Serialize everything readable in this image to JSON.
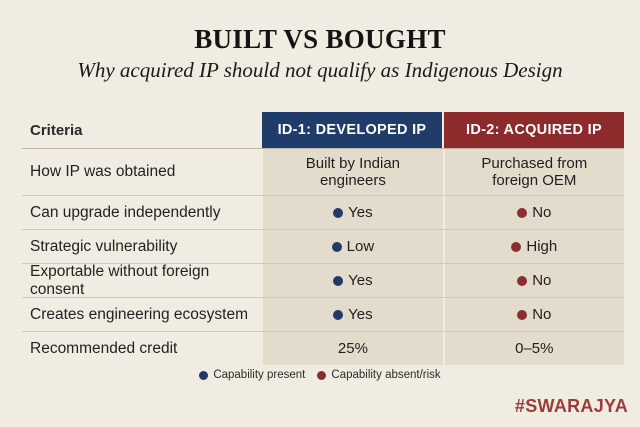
{
  "title": "BUILT VS BOUGHT",
  "subtitle": "Why acquired IP should not qualify as Indigenous Design",
  "table": {
    "criteria_header": "Criteria",
    "col1_header": "ID-1: DEVELOPED IP",
    "col2_header": "ID-2: ACQUIRED IP",
    "rows": [
      {
        "criteria": "How IP was obtained",
        "col1_line1": "Built by Indian",
        "col1_line2": "engineers",
        "col2_line1": "Purchased from",
        "col2_line2": "foreign OEM"
      },
      {
        "criteria": "Can upgrade independently",
        "col1": "Yes",
        "col1_dot": "blue",
        "col2": "No",
        "col2_dot": "red"
      },
      {
        "criteria": "Strategic vulnerability",
        "col1": "Low",
        "col1_dot": "blue",
        "col2": "High",
        "col2_dot": "red"
      },
      {
        "criteria": "Exportable without foreign consent",
        "col1": "Yes",
        "col1_dot": "blue",
        "col2": "No",
        "col2_dot": "red"
      },
      {
        "criteria": "Creates engineering ecosystem",
        "col1": "Yes",
        "col1_dot": "blue",
        "col2": "No",
        "col2_dot": "red"
      },
      {
        "criteria": "Recommended credit",
        "col1": "25%",
        "col2": "0–5%"
      }
    ]
  },
  "legend": {
    "present": "Capability present",
    "absent": "Capability absent/risk"
  },
  "brand": "#SWARAJYA",
  "colors": {
    "background": "#f1ece1",
    "developed_header": "#203c6a",
    "acquired_header": "#8c2a2c",
    "present_dot": "#1f3a68",
    "absent_dot": "#8a2e30",
    "cell_shade": "#e3dccd",
    "brand": "#9b3c3a"
  }
}
